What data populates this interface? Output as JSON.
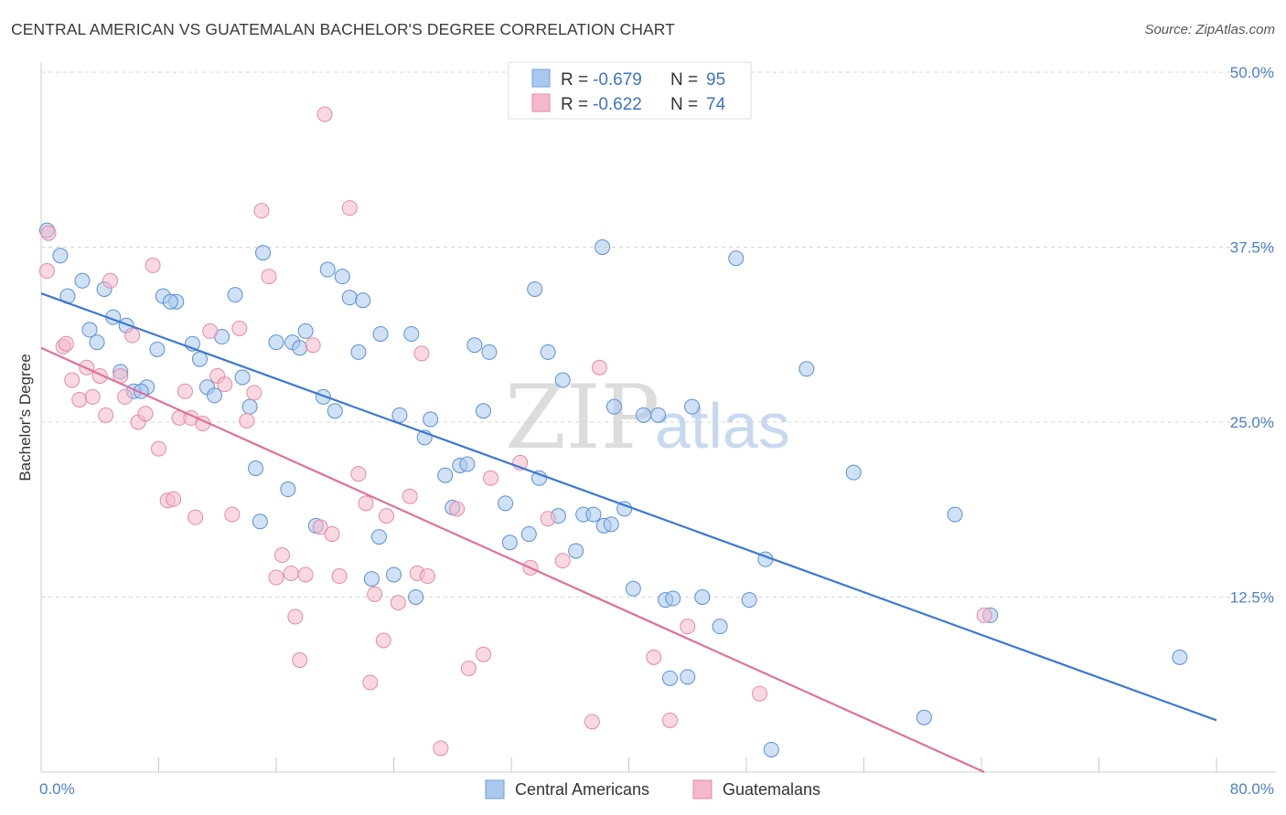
{
  "title": "CENTRAL AMERICAN VS GUATEMALAN BACHELOR'S DEGREE CORRELATION CHART",
  "source": "Source: ZipAtlas.com",
  "watermark": {
    "zip": "ZIP",
    "atlas": "atlas"
  },
  "legend": {
    "r_label": "R =",
    "n_label": "N =",
    "rows": [
      {
        "r": "-0.679",
        "n": "95",
        "color": "#a9c8ee"
      },
      {
        "r": "-0.622",
        "n": "74",
        "color": "#f5b8cb"
      }
    ]
  },
  "bottom_legend": [
    {
      "label": "Central Americans",
      "color": "#a9c8ee"
    },
    {
      "label": "Guatemalans",
      "color": "#f5b8cb"
    }
  ],
  "chart_data": {
    "type": "scatter",
    "title": "CENTRAL AMERICAN VS GUATEMALAN BACHELOR'S DEGREE CORRELATION CHART",
    "xlabel": "",
    "ylabel": "Bachelor's Degree",
    "xlim": [
      0,
      80
    ],
    "ylim": [
      0,
      50
    ],
    "x_tick_labels": [
      "0.0%",
      "80.0%"
    ],
    "y_ticks": [
      12.5,
      25.0,
      37.5,
      50.0
    ],
    "y_tick_labels": [
      "12.5%",
      "25.0%",
      "37.5%",
      "50.0%"
    ],
    "grid": true,
    "legend_position": "top-center",
    "series": [
      {
        "name": "Central Americans",
        "color": "#a9c8ee",
        "stroke": "#5a8fd6",
        "trend": {
          "x": [
            0,
            80
          ],
          "y": [
            34.2,
            3.7
          ],
          "color": "#3b78d4"
        },
        "points": [
          [
            0.4,
            38.7
          ],
          [
            1.3,
            36.9
          ],
          [
            1.8,
            34.0
          ],
          [
            2.8,
            35.1
          ],
          [
            4.3,
            34.5
          ],
          [
            4.9,
            32.5
          ],
          [
            3.3,
            31.6
          ],
          [
            3.8,
            30.7
          ],
          [
            5.8,
            31.9
          ],
          [
            5.4,
            28.6
          ],
          [
            6.3,
            27.2
          ],
          [
            7.2,
            27.5
          ],
          [
            6.8,
            27.2
          ],
          [
            7.9,
            30.2
          ],
          [
            8.3,
            34.0
          ],
          [
            9.2,
            33.6
          ],
          [
            8.8,
            33.6
          ],
          [
            10.3,
            30.6
          ],
          [
            10.8,
            29.5
          ],
          [
            11.3,
            27.5
          ],
          [
            11.8,
            26.9
          ],
          [
            12.3,
            31.1
          ],
          [
            13.2,
            34.1
          ],
          [
            13.7,
            28.2
          ],
          [
            14.2,
            26.1
          ],
          [
            14.6,
            21.7
          ],
          [
            15.1,
            37.1
          ],
          [
            16.0,
            30.7
          ],
          [
            17.1,
            30.7
          ],
          [
            17.6,
            30.3
          ],
          [
            18.0,
            31.5
          ],
          [
            14.9,
            17.9
          ],
          [
            16.8,
            20.2
          ],
          [
            18.7,
            17.6
          ],
          [
            19.2,
            26.8
          ],
          [
            20.0,
            25.8
          ],
          [
            19.5,
            35.9
          ],
          [
            20.5,
            35.4
          ],
          [
            21.0,
            33.9
          ],
          [
            21.9,
            33.7
          ],
          [
            21.6,
            30.0
          ],
          [
            23.1,
            31.3
          ],
          [
            23.0,
            16.8
          ],
          [
            22.5,
            13.8
          ],
          [
            24.0,
            14.1
          ],
          [
            24.4,
            25.5
          ],
          [
            25.2,
            31.3
          ],
          [
            25.5,
            12.5
          ],
          [
            26.1,
            23.9
          ],
          [
            26.5,
            25.2
          ],
          [
            27.5,
            21.2
          ],
          [
            28.5,
            21.9
          ],
          [
            28.0,
            18.9
          ],
          [
            29.0,
            22.0
          ],
          [
            29.5,
            30.5
          ],
          [
            30.1,
            25.8
          ],
          [
            30.5,
            30.0
          ],
          [
            31.6,
            19.2
          ],
          [
            31.9,
            16.4
          ],
          [
            33.2,
            17.0
          ],
          [
            33.6,
            34.5
          ],
          [
            33.9,
            21.0
          ],
          [
            34.5,
            30.0
          ],
          [
            35.2,
            18.3
          ],
          [
            35.5,
            28.0
          ],
          [
            36.4,
            15.8
          ],
          [
            36.9,
            18.4
          ],
          [
            37.6,
            18.4
          ],
          [
            38.2,
            37.5
          ],
          [
            38.3,
            17.6
          ],
          [
            38.8,
            17.7
          ],
          [
            39.0,
            26.1
          ],
          [
            39.7,
            18.8
          ],
          [
            40.3,
            13.1
          ],
          [
            41.0,
            25.5
          ],
          [
            42.0,
            25.5
          ],
          [
            42.5,
            12.3
          ],
          [
            42.8,
            6.7
          ],
          [
            43.0,
            12.4
          ],
          [
            44.0,
            6.8
          ],
          [
            44.3,
            26.1
          ],
          [
            45.0,
            12.5
          ],
          [
            46.2,
            10.4
          ],
          [
            47.3,
            36.7
          ],
          [
            48.2,
            12.3
          ],
          [
            49.3,
            15.2
          ],
          [
            49.7,
            1.6
          ],
          [
            52.1,
            28.8
          ],
          [
            55.3,
            21.4
          ],
          [
            60.1,
            3.9
          ],
          [
            62.2,
            18.4
          ],
          [
            64.6,
            11.2
          ],
          [
            77.5,
            8.2
          ]
        ]
      },
      {
        "name": "Guatemalans",
        "color": "#f5b8cb",
        "stroke": "#e48aa6",
        "trend": {
          "x": [
            0,
            64.2
          ],
          "y": [
            30.3,
            0
          ],
          "color": "#e0709a"
        },
        "points": [
          [
            0.4,
            35.8
          ],
          [
            0.5,
            38.5
          ],
          [
            1.5,
            30.4
          ],
          [
            1.7,
            30.6
          ],
          [
            2.1,
            28.0
          ],
          [
            2.6,
            26.6
          ],
          [
            3.1,
            28.9
          ],
          [
            3.5,
            26.8
          ],
          [
            4.0,
            28.3
          ],
          [
            4.4,
            25.5
          ],
          [
            4.7,
            35.1
          ],
          [
            5.4,
            28.3
          ],
          [
            5.7,
            26.8
          ],
          [
            6.2,
            31.2
          ],
          [
            6.6,
            25.0
          ],
          [
            7.1,
            25.6
          ],
          [
            7.6,
            36.2
          ],
          [
            8.0,
            23.1
          ],
          [
            8.6,
            19.4
          ],
          [
            9.0,
            19.5
          ],
          [
            9.4,
            25.3
          ],
          [
            9.8,
            27.2
          ],
          [
            10.2,
            25.3
          ],
          [
            10.5,
            18.2
          ],
          [
            11.0,
            24.9
          ],
          [
            11.5,
            31.5
          ],
          [
            12.0,
            28.3
          ],
          [
            12.5,
            27.7
          ],
          [
            13.0,
            18.4
          ],
          [
            13.5,
            31.7
          ],
          [
            14.0,
            25.1
          ],
          [
            14.5,
            27.1
          ],
          [
            15.0,
            40.1
          ],
          [
            15.5,
            35.4
          ],
          [
            16.0,
            13.9
          ],
          [
            16.4,
            15.5
          ],
          [
            17.0,
            14.2
          ],
          [
            17.3,
            11.1
          ],
          [
            17.6,
            8.0
          ],
          [
            18.0,
            14.1
          ],
          [
            18.5,
            30.5
          ],
          [
            19.0,
            17.5
          ],
          [
            19.3,
            47.0
          ],
          [
            19.8,
            17.0
          ],
          [
            20.3,
            14.0
          ],
          [
            21.0,
            40.3
          ],
          [
            21.6,
            21.3
          ],
          [
            22.1,
            19.2
          ],
          [
            22.4,
            6.4
          ],
          [
            22.7,
            12.7
          ],
          [
            23.3,
            9.4
          ],
          [
            23.5,
            18.3
          ],
          [
            24.3,
            12.1
          ],
          [
            25.1,
            19.7
          ],
          [
            25.6,
            14.2
          ],
          [
            25.9,
            29.9
          ],
          [
            26.3,
            14.0
          ],
          [
            27.2,
            1.7
          ],
          [
            28.3,
            18.8
          ],
          [
            29.1,
            7.4
          ],
          [
            30.1,
            8.4
          ],
          [
            30.6,
            21.0
          ],
          [
            32.6,
            22.1
          ],
          [
            33.3,
            14.6
          ],
          [
            34.5,
            18.1
          ],
          [
            35.5,
            15.1
          ],
          [
            37.5,
            3.6
          ],
          [
            38.0,
            28.9
          ],
          [
            41.7,
            8.2
          ],
          [
            42.8,
            3.7
          ],
          [
            44.0,
            10.4
          ],
          [
            48.9,
            5.6
          ],
          [
            64.2,
            11.2
          ]
        ]
      }
    ]
  }
}
